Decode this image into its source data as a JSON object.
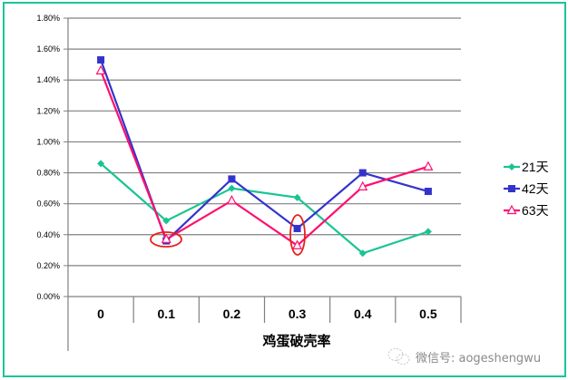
{
  "chart_data": {
    "type": "line",
    "title": "",
    "xlabel": "鸡蛋破壳率",
    "ylabel": "",
    "categories": [
      "0",
      "0.1",
      "0.2",
      "0.3",
      "0.4",
      "0.5"
    ],
    "yticks": [
      "0.00%",
      "0.20%",
      "0.40%",
      "0.60%",
      "0.80%",
      "1.00%",
      "1.20%",
      "1.40%",
      "1.60%",
      "1.80%"
    ],
    "ylim": [
      0,
      1.8
    ],
    "grid": true,
    "legend_position": "right",
    "series": [
      {
        "name": "21天",
        "color": "#19c493",
        "marker": "diamond",
        "values": [
          0.86,
          0.49,
          0.7,
          0.64,
          0.28,
          0.42
        ]
      },
      {
        "name": "42天",
        "color": "#3333cc",
        "marker": "square",
        "values": [
          1.53,
          0.36,
          0.76,
          0.44,
          0.8,
          0.68
        ]
      },
      {
        "name": "63天",
        "color": "#ff0f6e",
        "marker": "triangle",
        "values": [
          1.46,
          0.37,
          0.62,
          0.33,
          0.71,
          0.84
        ]
      }
    ],
    "annotations": [
      {
        "type": "ellipse",
        "color": "#e8201a",
        "category": "0.1",
        "note": "highlights 42天 and 63天 at 0.1"
      },
      {
        "type": "ellipse",
        "color": "#e8201a",
        "category": "0.3",
        "note": "highlights 42天 and 63天 at 0.3"
      }
    ]
  },
  "watermark": {
    "icon": "wechat-icon",
    "text": "微信号: aogeshengwu"
  }
}
